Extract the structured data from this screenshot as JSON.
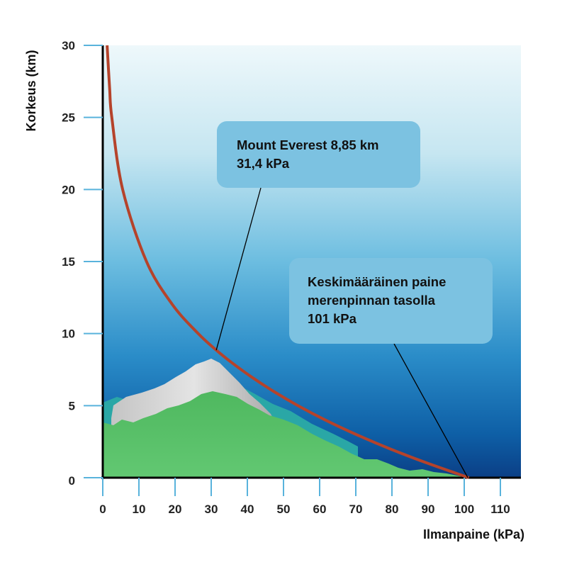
{
  "chart_data": {
    "type": "line",
    "title": "",
    "xlabel": "Ilmanpaine (kPa)",
    "ylabel": "Korkeus (km)",
    "xlim": [
      0,
      115
    ],
    "ylim": [
      0,
      30
    ],
    "x_ticks": [
      0,
      10,
      20,
      30,
      40,
      50,
      60,
      70,
      80,
      90,
      100,
      110
    ],
    "y_ticks": [
      0,
      5,
      10,
      15,
      20,
      25,
      30
    ],
    "grid": false,
    "legend": "none",
    "series": [
      {
        "color": "#b5432b",
        "points": [
          {
            "x": 101.3,
            "y": 0
          },
          {
            "x": 89.9,
            "y": 1
          },
          {
            "x": 79.5,
            "y": 2
          },
          {
            "x": 70.1,
            "y": 3
          },
          {
            "x": 61.6,
            "y": 4
          },
          {
            "x": 54.0,
            "y": 5
          },
          {
            "x": 47.2,
            "y": 6
          },
          {
            "x": 41.1,
            "y": 7
          },
          {
            "x": 35.6,
            "y": 8
          },
          {
            "x": 31.4,
            "y": 8.85
          },
          {
            "x": 26.4,
            "y": 10
          },
          {
            "x": 19.3,
            "y": 12
          },
          {
            "x": 12.1,
            "y": 15
          },
          {
            "x": 5.5,
            "y": 20
          },
          {
            "x": 2.5,
            "y": 25
          },
          {
            "x": 1.9,
            "y": 27
          },
          {
            "x": 1.2,
            "y": 30
          }
        ]
      }
    ],
    "annotations": [
      {
        "id": "everest",
        "lines": [
          "Mount Everest 8,85 km",
          "31,4 kPa"
        ],
        "x": 31.4,
        "y": 8.85
      },
      {
        "id": "sealevel",
        "lines": [
          "Keskimääräinen paine",
          "merenpinnan tasolla",
          "101 kPa"
        ],
        "x": 101,
        "y": 0
      }
    ],
    "colors": {
      "curve": "#b5432b",
      "sky_top": "#eef8fb",
      "sky_bottom": "#0b4f95",
      "ground": "#5cc26b",
      "snow": "#cfcfcf",
      "callout": "#7cc2e1",
      "axis": "#000000",
      "tick": "#59b3dc"
    }
  }
}
